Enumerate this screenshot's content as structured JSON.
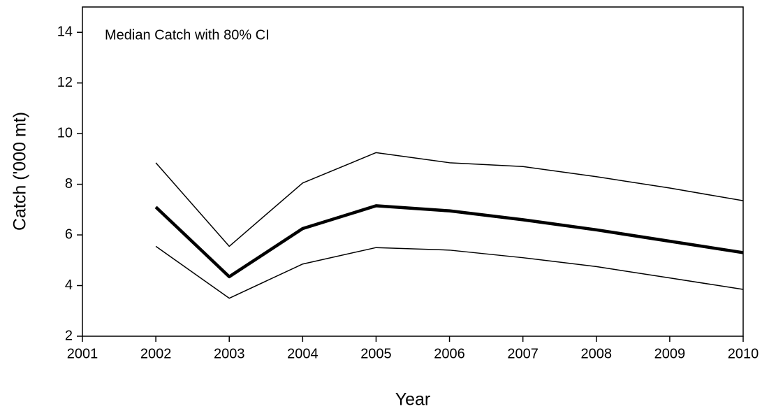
{
  "chart_data": {
    "type": "line",
    "annotation": "Median Catch with 80% CI",
    "xlabel": "Year",
    "ylabel": "Catch ('000 mt)",
    "x": [
      2002,
      2003,
      2004,
      2005,
      2006,
      2007,
      2008,
      2009,
      2010
    ],
    "series": [
      {
        "color": "#000000",
        "width": 4.5,
        "values": [
          7.1,
          4.35,
          6.25,
          7.15,
          6.95,
          6.6,
          6.2,
          5.75,
          5.3
        ]
      },
      {
        "color": "#000000",
        "width": 1.5,
        "values": [
          8.85,
          5.55,
          8.05,
          9.25,
          8.85,
          8.7,
          8.3,
          7.85,
          7.35
        ]
      },
      {
        "color": "#000000",
        "width": 1.5,
        "values": [
          5.55,
          3.5,
          4.85,
          5.5,
          5.4,
          5.1,
          4.75,
          4.3,
          3.85
        ]
      }
    ],
    "xlim": [
      2001,
      2010
    ],
    "xticks": [
      2001,
      2002,
      2003,
      2004,
      2005,
      2006,
      2007,
      2008,
      2009,
      2010
    ],
    "ylim": [
      2,
      15
    ],
    "yticks": [
      2,
      4,
      6,
      8,
      10,
      12,
      14
    ],
    "grid": false
  }
}
